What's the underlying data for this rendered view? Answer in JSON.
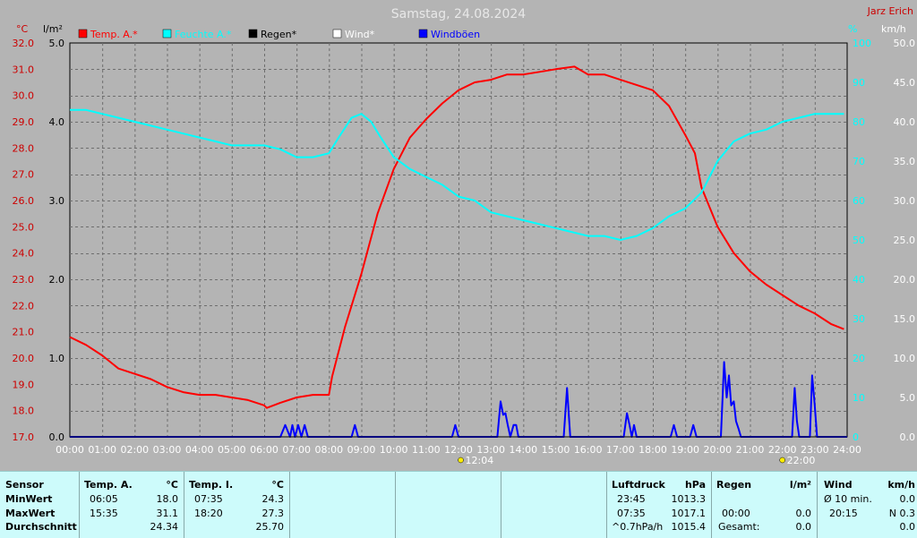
{
  "chart_data": {
    "type": "line",
    "title": "Samstag, 24.08.2024",
    "author": "Jarz Erich",
    "axes": {
      "left_temp": {
        "unit": "°C",
        "min": 17.0,
        "max": 32.0,
        "ticks": [
          "17.0",
          "18.0",
          "19.0",
          "20.0",
          "21.0",
          "22.0",
          "23.0",
          "24.0",
          "25.0",
          "26.0",
          "27.0",
          "28.0",
          "29.0",
          "30.0",
          "31.0",
          "32.0"
        ]
      },
      "left_rain": {
        "unit": "l/m²",
        "min": 0.0,
        "max": 5.0,
        "ticks": [
          "0.0",
          "1.0",
          "2.0",
          "3.0",
          "4.0",
          "5.0"
        ]
      },
      "right_humidity": {
        "unit": "%",
        "min": 0,
        "max": 100,
        "ticks": [
          "0",
          "10",
          "20",
          "30",
          "40",
          "50",
          "60",
          "70",
          "80",
          "90",
          "100"
        ]
      },
      "right_wind": {
        "unit": "km/h",
        "min": 0.0,
        "max": 50.0,
        "ticks": [
          "0.0",
          "5.0",
          "10.0",
          "15.0",
          "20.0",
          "25.0",
          "30.0",
          "35.0",
          "40.0",
          "45.0",
          "50.0"
        ]
      },
      "x": {
        "min": 0,
        "max": 24,
        "ticks": [
          "00:00",
          "01:00",
          "02:00",
          "03:00",
          "04:00",
          "05:00",
          "06:00",
          "07:00",
          "08:00",
          "09:00",
          "10:00",
          "11:00",
          "12:00",
          "13:00",
          "14:00",
          "15:00",
          "16:00",
          "17:00",
          "18:00",
          "19:00",
          "20:00",
          "21:00",
          "22:00",
          "23:00",
          "24:00"
        ]
      }
    },
    "grid": true,
    "legend": [
      {
        "name": "Temp. A.*",
        "color": "#ff0000"
      },
      {
        "name": "Feuchte A.*",
        "color": "#00ffff"
      },
      {
        "name": "Regen*",
        "color": "#000000"
      },
      {
        "name": "Wind*",
        "color": "#ffffff"
      },
      {
        "name": "Windböen",
        "color": "#0000ff"
      }
    ],
    "annotations": [
      {
        "text": "12:04",
        "x": 12.07
      },
      {
        "text": "22:00",
        "x": 22.0
      }
    ],
    "series": [
      {
        "name": "Temp. A.*",
        "color": "#ff0000",
        "axis": "left_temp",
        "x": [
          0,
          0.5,
          1,
          1.5,
          2,
          2.5,
          3,
          3.5,
          4,
          4.5,
          5,
          5.5,
          6,
          6.08,
          6.5,
          7,
          7.5,
          8,
          8.1,
          8.5,
          9,
          9.5,
          10,
          10.5,
          11,
          11.5,
          12,
          12.5,
          13,
          13.5,
          14,
          14.5,
          15,
          15.58,
          16,
          16.5,
          17,
          17.5,
          18,
          18.5,
          19,
          19.3,
          19.5,
          20,
          20.5,
          21,
          21.5,
          22,
          22.5,
          23,
          23.5,
          23.9
        ],
        "values": [
          20.8,
          20.5,
          20.1,
          19.6,
          19.4,
          19.2,
          18.9,
          18.7,
          18.6,
          18.6,
          18.5,
          18.4,
          18.2,
          18.1,
          18.3,
          18.5,
          18.6,
          18.6,
          19.3,
          21.2,
          23.2,
          25.5,
          27.2,
          28.4,
          29.1,
          29.7,
          30.2,
          30.5,
          30.6,
          30.8,
          30.8,
          30.9,
          31.0,
          31.1,
          30.8,
          30.8,
          30.6,
          30.4,
          30.2,
          29.6,
          28.5,
          27.8,
          26.5,
          25.0,
          24.0,
          23.3,
          22.8,
          22.4,
          22.0,
          21.7,
          21.3,
          21.1
        ]
      },
      {
        "name": "Feuchte A.*",
        "color": "#00ffff",
        "axis": "right_humidity",
        "x": [
          0,
          0.5,
          1,
          1.5,
          2,
          2.5,
          3,
          3.5,
          4,
          4.5,
          5,
          5.5,
          6,
          6.5,
          7,
          7.5,
          8,
          8.3,
          8.7,
          9,
          9.3,
          9.6,
          10,
          10.5,
          11,
          11.5,
          12,
          12.5,
          13,
          13.5,
          14,
          14.5,
          15,
          15.5,
          16,
          16.5,
          17,
          17.5,
          18,
          18.5,
          19,
          19.5,
          20,
          20.5,
          21,
          21.5,
          22,
          22.5,
          23,
          23.5,
          23.9
        ],
        "values": [
          83,
          83,
          82,
          81,
          80,
          79,
          78,
          77,
          76,
          75,
          74,
          74,
          74,
          73,
          71,
          71,
          72,
          76,
          81,
          82,
          80,
          76,
          71,
          68,
          66,
          64,
          61,
          60,
          57,
          56,
          55,
          54,
          53,
          52,
          51,
          51,
          50,
          51,
          53,
          56,
          58,
          62,
          70,
          75,
          77,
          78,
          80,
          81,
          82,
          82,
          82
        ]
      },
      {
        "name": "Windböen",
        "color": "#0000ff",
        "axis": "right_wind",
        "x": [
          0,
          6.5,
          6.65,
          6.8,
          6.87,
          6.95,
          7.05,
          7.15,
          7.25,
          7.35,
          8.7,
          8.8,
          8.9,
          11.8,
          11.9,
          12.0,
          13.2,
          13.3,
          13.38,
          13.45,
          13.52,
          13.6,
          13.7,
          13.78,
          13.85,
          13.92,
          15.25,
          15.35,
          15.45,
          17.1,
          17.2,
          17.28,
          17.35,
          17.42,
          17.5,
          17.57,
          18.55,
          18.65,
          18.75,
          19.15,
          19.25,
          19.35,
          20.1,
          20.2,
          20.28,
          20.35,
          20.42,
          20.5,
          20.57,
          20.65,
          20.72,
          22.3,
          22.38,
          22.45,
          22.52,
          22.85,
          22.92,
          23.0,
          23.07,
          24
        ],
        "values": [
          0,
          0,
          1.5,
          0,
          1.5,
          0,
          1.5,
          0,
          1.5,
          0,
          0,
          1.5,
          0,
          0,
          1.5,
          0,
          0,
          4.5,
          2.8,
          3.0,
          1.5,
          0,
          1.5,
          1.5,
          0,
          0,
          0,
          6.2,
          0,
          0,
          3.0,
          1.5,
          0,
          1.5,
          0,
          0,
          0,
          1.5,
          0,
          0,
          1.5,
          0,
          0,
          9.5,
          5.0,
          7.8,
          4.0,
          4.5,
          2.0,
          1.0,
          0,
          0,
          6.2,
          2.0,
          0,
          0,
          7.8,
          4.0,
          0,
          0
        ]
      },
      {
        "name": "Regen*",
        "color": "#000000",
        "axis": "left_rain",
        "x": [
          0,
          24
        ],
        "values": [
          0,
          0
        ]
      }
    ]
  },
  "stats": {
    "sensor": {
      "header": "Sensor",
      "rows": [
        "MinWert",
        "MaxWert",
        "Durchschnitt"
      ]
    },
    "temp_a": {
      "header": "Temp. A.",
      "unit": "°C",
      "rows": [
        [
          "06:05",
          "18.0"
        ],
        [
          "15:35",
          "31.1"
        ],
        [
          "",
          "24.34"
        ]
      ]
    },
    "temp_i": {
      "header": "Temp. I.",
      "unit": "°C",
      "rows": [
        [
          "07:35",
          "24.3"
        ],
        [
          "18:20",
          "27.3"
        ],
        [
          "",
          "25.70"
        ]
      ]
    },
    "luftdruck": {
      "header": "Luftdruck",
      "unit": "hPa",
      "rows": [
        [
          "23:45",
          "1013.3"
        ],
        [
          "07:35",
          "1017.1"
        ],
        [
          "^0.7hPa/h",
          "1015.4"
        ]
      ]
    },
    "regen": {
      "header": "Regen",
      "unit": "l/m²",
      "rows": [
        [
          "",
          ""
        ],
        [
          "00:00",
          "0.0"
        ],
        [
          "Gesamt:",
          "0.0"
        ]
      ]
    },
    "wind": {
      "header": "Wind",
      "unit": "km/h",
      "rows": [
        [
          "Ø 10 min.",
          "0.0"
        ],
        [
          "20:15",
          "N 0.3"
        ],
        [
          "",
          "0.0"
        ]
      ]
    }
  }
}
